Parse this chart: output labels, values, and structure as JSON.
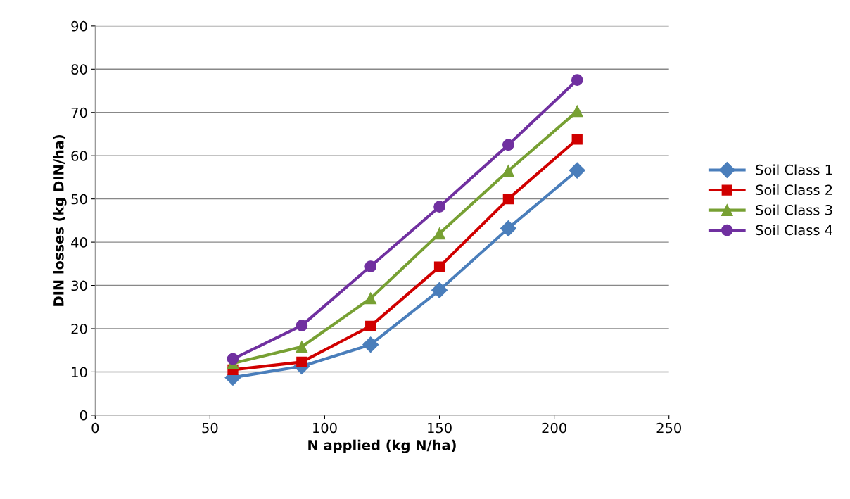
{
  "chart_data": {
    "type": "line",
    "xlabel": "N applied (kg N/ha)",
    "ylabel": "DIN losses (kg DIN/ha)",
    "x": [
      60,
      90,
      120,
      150,
      180,
      210
    ],
    "series": [
      {
        "name": "Soil Class 1",
        "color": "#4a7ebb",
        "marker": "diamond",
        "values": [
          8.7,
          11.3,
          16.3,
          28.9,
          43.2,
          56.6
        ]
      },
      {
        "name": "Soil Class 2",
        "color": "#d00000",
        "marker": "square",
        "values": [
          10.5,
          12.3,
          20.6,
          34.3,
          50.0,
          63.8
        ]
      },
      {
        "name": "Soil Class 3",
        "color": "#77a033",
        "marker": "triangle",
        "values": [
          12.0,
          15.8,
          27.0,
          42.0,
          56.5,
          70.3
        ]
      },
      {
        "name": "Soil Class 4",
        "color": "#7030a0",
        "marker": "circle",
        "values": [
          13.0,
          20.7,
          34.4,
          48.2,
          62.5,
          77.5
        ]
      }
    ],
    "xlim": [
      0,
      250
    ],
    "xticks": [
      0,
      50,
      100,
      150,
      200,
      250
    ],
    "ylim": [
      0,
      90
    ],
    "yticks": [
      0,
      10,
      20,
      30,
      40,
      50,
      60,
      70,
      80,
      90
    ],
    "grid": "y",
    "legend": "right",
    "line_style": "solid"
  }
}
